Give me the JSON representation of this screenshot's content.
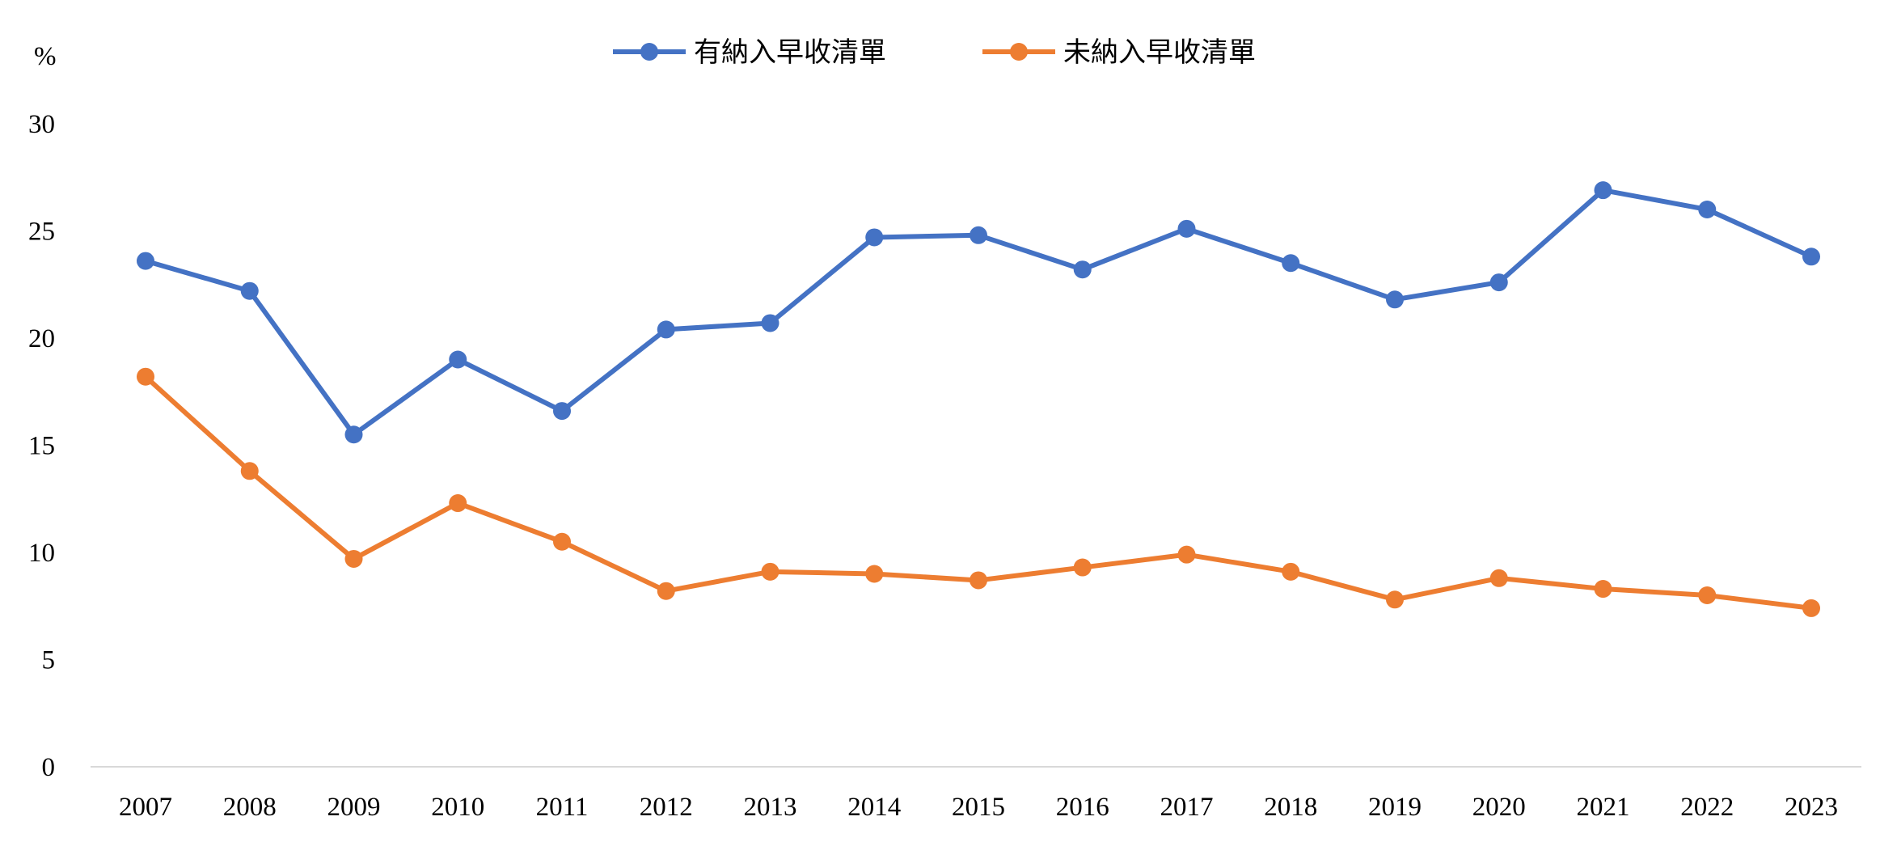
{
  "chart_data": {
    "type": "line",
    "title": "",
    "xlabel": "",
    "ylabel": "%",
    "ylim": [
      0,
      30
    ],
    "yticks": [
      0,
      5,
      10,
      15,
      20,
      25,
      30
    ],
    "grid": false,
    "legend_position": "top-center",
    "categories": [
      "2007",
      "2008",
      "2009",
      "2010",
      "2011",
      "2012",
      "2013",
      "2014",
      "2015",
      "2016",
      "2017",
      "2018",
      "2019",
      "2020",
      "2021",
      "2022",
      "2023"
    ],
    "series": [
      {
        "name": "有納入早收清單",
        "color": "#4472C4",
        "values": [
          23.6,
          22.2,
          15.5,
          19.0,
          16.6,
          20.4,
          20.7,
          24.7,
          24.8,
          23.2,
          25.1,
          23.5,
          21.8,
          22.6,
          26.9,
          26.0,
          23.8
        ]
      },
      {
        "name": "未納入早收清單",
        "color": "#ED7D31",
        "values": [
          18.2,
          13.8,
          9.7,
          12.3,
          10.5,
          8.2,
          9.1,
          9.0,
          8.7,
          9.3,
          9.9,
          9.1,
          7.8,
          8.8,
          8.3,
          8.0,
          7.4
        ]
      }
    ]
  }
}
